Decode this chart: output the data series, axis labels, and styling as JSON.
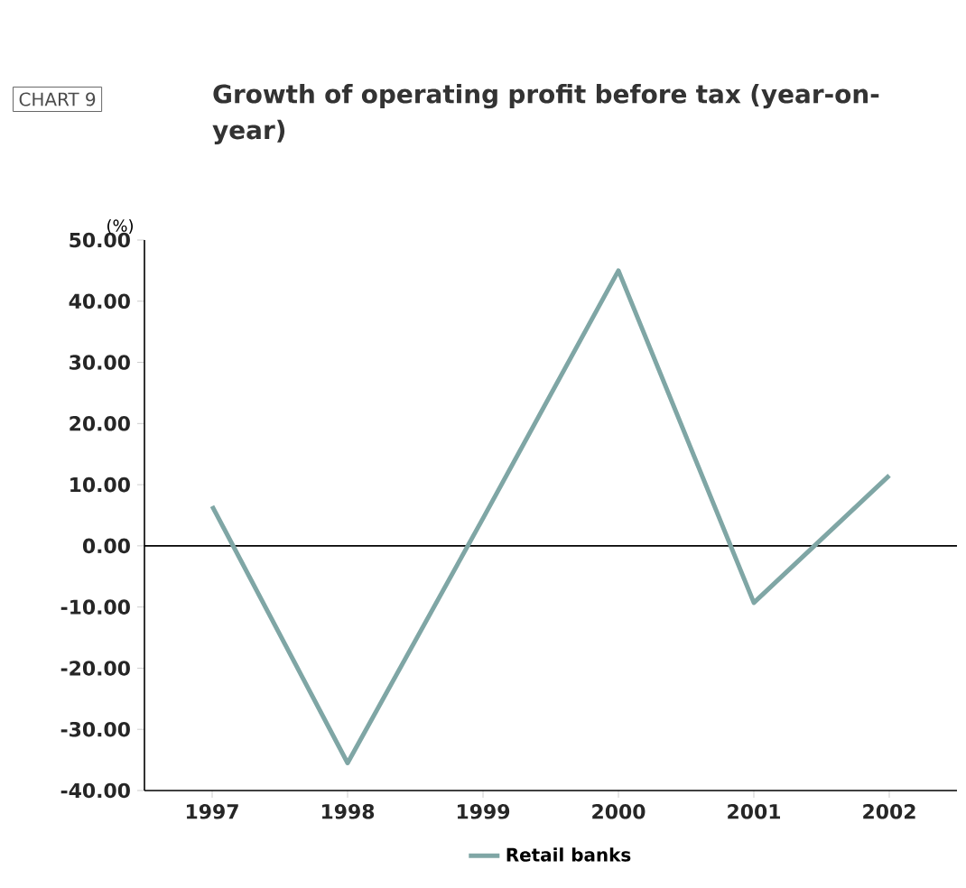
{
  "chart_data": {
    "type": "line",
    "title": "Growth of operating profit before tax (year-on-year)",
    "ylabel": "(%)",
    "annotations": [
      "CHART 9"
    ],
    "categories": [
      "1997",
      "1998",
      "1999",
      "2000",
      "2001",
      "2002"
    ],
    "series": [
      {
        "name": "Retail banks",
        "color": "#7fa6a5",
        "values": [
          6.5,
          -35.5,
          4.5,
          45.0,
          -9.3,
          11.5
        ]
      }
    ],
    "ylim": [
      -40,
      50
    ],
    "yticks": [
      {
        "value": -40,
        "label": "-40.00"
      },
      {
        "value": -30,
        "label": "-30.00"
      },
      {
        "value": -20,
        "label": "-20.00"
      },
      {
        "value": -10,
        "label": "-10.00"
      },
      {
        "value": 0,
        "label": "0.00"
      },
      {
        "value": 10,
        "label": "10.00"
      },
      {
        "value": 20,
        "label": "20.00"
      },
      {
        "value": 30,
        "label": "30.00"
      },
      {
        "value": 40,
        "label": "40.00"
      },
      {
        "value": 50,
        "label": "50.00"
      }
    ],
    "ref_lines": [
      {
        "axis": "y",
        "value": 0,
        "color": "#000000"
      }
    ],
    "grid": false,
    "legend": "bottom",
    "marker": "none",
    "line_style": "solid"
  }
}
